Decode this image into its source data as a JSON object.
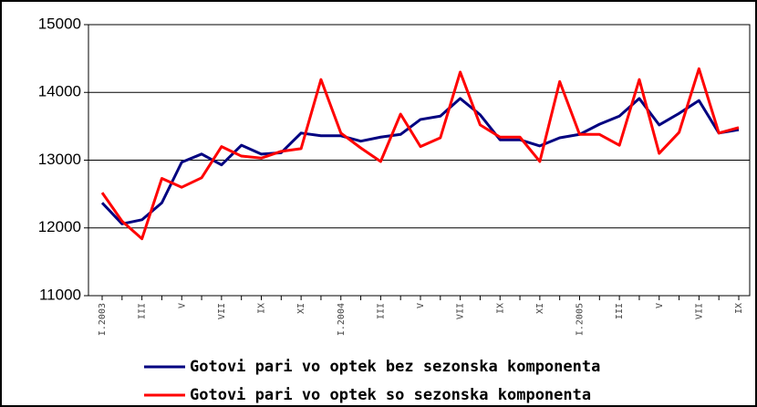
{
  "chart_data": {
    "type": "line",
    "categories": [
      "I.2003",
      null,
      "III",
      null,
      "V",
      null,
      "VII",
      null,
      "IX",
      null,
      "XI",
      null,
      "I.2004",
      null,
      "III",
      null,
      "V",
      null,
      "VII",
      null,
      "IX",
      null,
      "XI",
      null,
      "I.2005",
      null,
      "III",
      null,
      "V",
      null,
      "VII",
      null,
      "IX"
    ],
    "series": [
      {
        "name": "Gotovi pari vo optek bez sezonska komponenta",
        "color": "#000080",
        "values": [
          12370,
          12060,
          12120,
          12370,
          12970,
          13090,
          12930,
          13220,
          13090,
          13110,
          13400,
          13360,
          13360,
          13280,
          13340,
          13380,
          13600,
          13650,
          13910,
          13670,
          13300,
          13300,
          13210,
          13330,
          13380,
          13530,
          13650,
          13910,
          13520,
          13690,
          13880,
          13400,
          13450
        ]
      },
      {
        "name": "Gotovi pari vo optek so sezonska komponenta",
        "color": "#ff0000",
        "values": [
          12520,
          12100,
          11840,
          12730,
          12600,
          12740,
          13200,
          13060,
          13030,
          13130,
          13170,
          14190,
          13400,
          13180,
          12980,
          13680,
          13200,
          13330,
          14300,
          13520,
          13340,
          13340,
          12980,
          14160,
          13380,
          13380,
          13220,
          14190,
          13100,
          13410,
          14350,
          13400,
          13480
        ]
      }
    ],
    "ylim": [
      11000,
      15000
    ],
    "yticks": [
      11000,
      12000,
      13000,
      14000,
      15000
    ],
    "grid": true
  }
}
